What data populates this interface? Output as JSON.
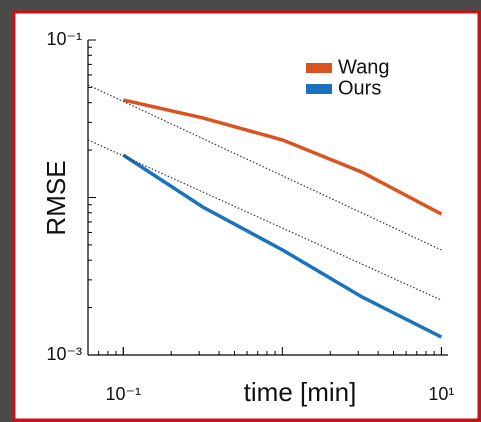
{
  "chart_data": {
    "type": "line",
    "xlabel": "time [min]",
    "ylabel": "RMSE",
    "x": [
      0.1,
      0.316,
      1,
      3.16,
      10
    ],
    "series": [
      {
        "name": "Wang",
        "color": "#d9541e",
        "values": [
          0.0416,
          0.032,
          0.0232,
          0.0145,
          0.00785
        ]
      },
      {
        "name": "Ours",
        "color": "#1b72be",
        "values": [
          0.0186,
          0.0087,
          0.00465,
          0.00234,
          0.0013
        ]
      },
      {
        "color": "#333333",
        "dashed": true,
        "x": [
          0.06,
          10
        ],
        "values": [
          0.0518,
          0.00464
        ]
      },
      {
        "color": "#333333",
        "dashed": true,
        "x": [
          0.06,
          10
        ],
        "values": [
          0.0232,
          0.00223
        ]
      }
    ],
    "xlim": [
      0.06,
      11
    ],
    "ylim": [
      0.001,
      0.1
    ],
    "xticks": [
      {
        "value": 0.1,
        "label": "10⁻¹"
      },
      {
        "value": 10,
        "label": "10¹"
      }
    ],
    "yticks": [
      {
        "value": 0.1,
        "label": "10⁻¹"
      },
      {
        "value": 0.001,
        "label": "10⁻³"
      }
    ],
    "xscale": "log",
    "yscale": "log",
    "legend": "upper right"
  }
}
